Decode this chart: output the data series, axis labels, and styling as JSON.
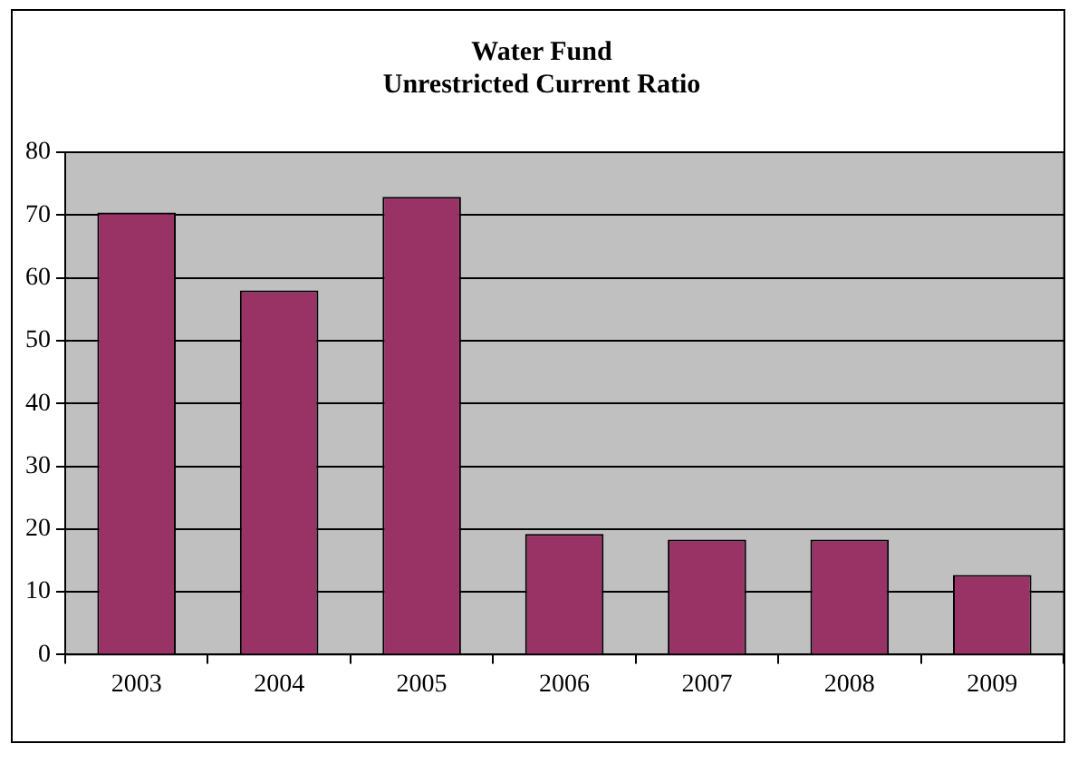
{
  "chart_data": {
    "type": "bar",
    "title": "Water Fund\nUnrestricted Current Ratio",
    "categories": [
      "2003",
      "2004",
      "2005",
      "2006",
      "2007",
      "2008",
      "2009"
    ],
    "values": [
      70.4,
      58,
      72.9,
      19.2,
      18.3,
      18.3,
      12.7
    ],
    "color": "#993366",
    "ylim": [
      0,
      80
    ],
    "yticks": [
      0,
      10,
      20,
      30,
      40,
      50,
      60,
      70,
      80
    ],
    "grid": "y",
    "legend": false
  }
}
